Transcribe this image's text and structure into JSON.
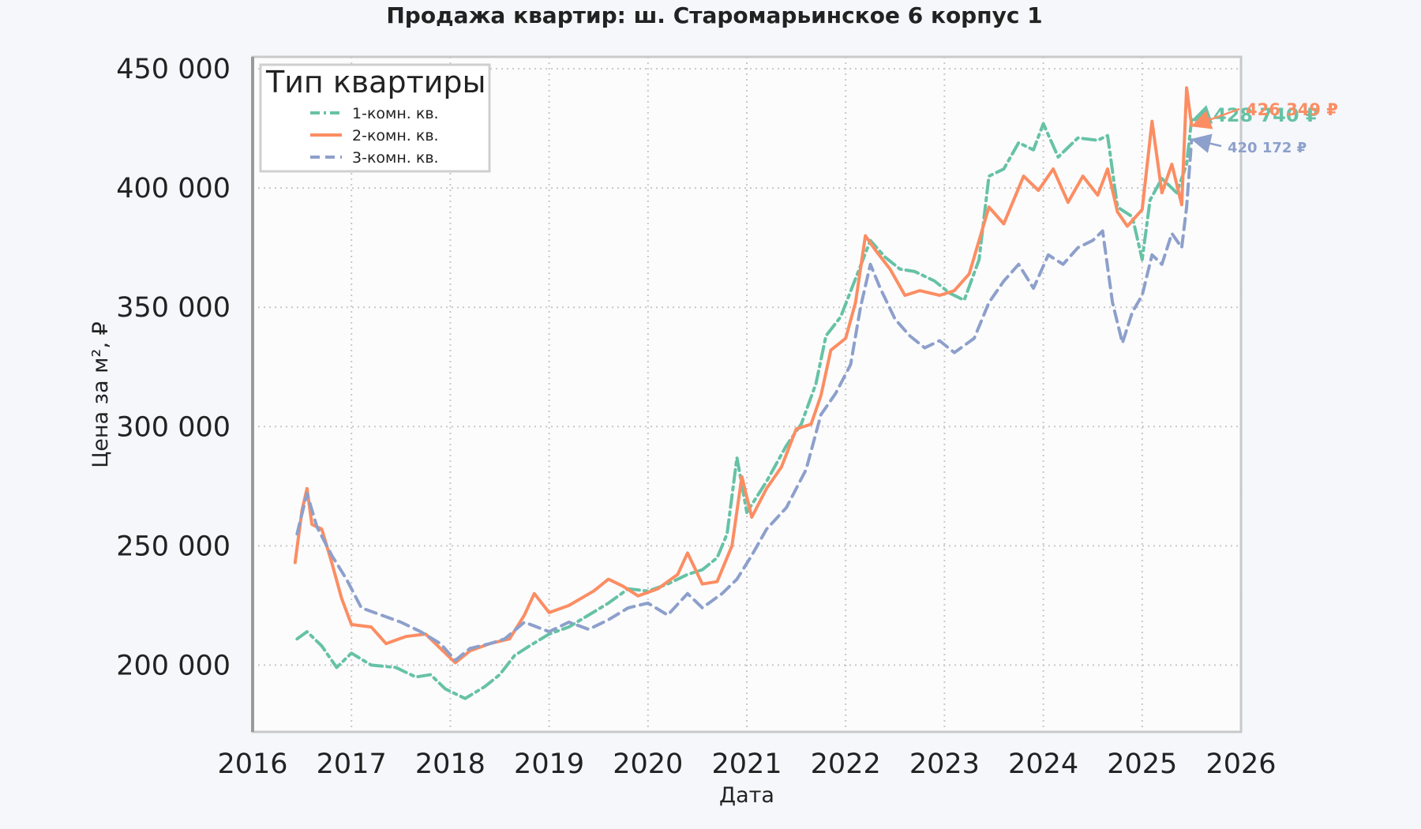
{
  "chart_data": {
    "type": "line",
    "title": "Продажа квартир: ш. Старомарьинское 6 корпус 1",
    "xlabel": "Дата",
    "ylabel": "Цена за м², ₽",
    "xlim": [
      2016.0,
      2026.0
    ],
    "ylim": [
      172000,
      455000
    ],
    "x_ticks": [
      "2016",
      "2017",
      "2018",
      "2019",
      "2020",
      "2021",
      "2022",
      "2023",
      "2024",
      "2025",
      "2026"
    ],
    "y_ticks": [
      "200 000",
      "250 000",
      "300 000",
      "350 000",
      "400 000",
      "450 000"
    ],
    "grid": true,
    "legend": {
      "title": "Тип квартиры",
      "position": "top-left"
    },
    "series": [
      {
        "name": "1-комн. кв.",
        "color": "#66c2a5",
        "dash": "dash-dot",
        "end_label": "428 740 ₽",
        "end_value": 428740,
        "points": [
          [
            2016.45,
            211000
          ],
          [
            2016.55,
            214000
          ],
          [
            2016.7,
            208000
          ],
          [
            2016.85,
            199000
          ],
          [
            2017.0,
            205000
          ],
          [
            2017.2,
            200000
          ],
          [
            2017.45,
            199000
          ],
          [
            2017.65,
            195000
          ],
          [
            2017.8,
            196000
          ],
          [
            2017.95,
            190000
          ],
          [
            2018.15,
            186000
          ],
          [
            2018.35,
            191000
          ],
          [
            2018.5,
            196000
          ],
          [
            2018.65,
            204000
          ],
          [
            2018.8,
            208000
          ],
          [
            2019.0,
            213000
          ],
          [
            2019.2,
            216000
          ],
          [
            2019.4,
            221000
          ],
          [
            2019.6,
            226000
          ],
          [
            2019.8,
            232000
          ],
          [
            2020.0,
            231000
          ],
          [
            2020.2,
            234000
          ],
          [
            2020.4,
            238000
          ],
          [
            2020.55,
            240000
          ],
          [
            2020.7,
            245000
          ],
          [
            2020.8,
            255000
          ],
          [
            2020.9,
            287000
          ],
          [
            2021.0,
            264000
          ],
          [
            2021.2,
            277000
          ],
          [
            2021.4,
            292000
          ],
          [
            2021.55,
            301000
          ],
          [
            2021.7,
            318000
          ],
          [
            2021.8,
            338000
          ],
          [
            2021.95,
            346000
          ],
          [
            2022.1,
            362000
          ],
          [
            2022.25,
            378000
          ],
          [
            2022.4,
            371000
          ],
          [
            2022.55,
            366000
          ],
          [
            2022.7,
            365000
          ],
          [
            2022.9,
            361000
          ],
          [
            2023.05,
            356000
          ],
          [
            2023.2,
            353000
          ],
          [
            2023.35,
            370000
          ],
          [
            2023.45,
            405000
          ],
          [
            2023.6,
            408000
          ],
          [
            2023.75,
            419000
          ],
          [
            2023.9,
            416000
          ],
          [
            2024.0,
            427000
          ],
          [
            2024.15,
            413000
          ],
          [
            2024.35,
            421000
          ],
          [
            2024.55,
            420000
          ],
          [
            2024.65,
            422000
          ],
          [
            2024.75,
            392000
          ],
          [
            2024.9,
            388000
          ],
          [
            2025.0,
            370000
          ],
          [
            2025.08,
            395000
          ],
          [
            2025.2,
            404000
          ],
          [
            2025.35,
            398000
          ],
          [
            2025.45,
            410000
          ],
          [
            2025.5,
            428740
          ]
        ]
      },
      {
        "name": "2-комн. кв.",
        "color": "#fc8d62",
        "dash": "solid",
        "end_label": "426 349 ₽",
        "end_value": 426349,
        "points": [
          [
            2016.43,
            243000
          ],
          [
            2016.5,
            265000
          ],
          [
            2016.55,
            274000
          ],
          [
            2016.6,
            259000
          ],
          [
            2016.7,
            257000
          ],
          [
            2016.8,
            243000
          ],
          [
            2016.9,
            228000
          ],
          [
            2017.0,
            217000
          ],
          [
            2017.2,
            216000
          ],
          [
            2017.35,
            209000
          ],
          [
            2017.55,
            212000
          ],
          [
            2017.75,
            213000
          ],
          [
            2017.9,
            207000
          ],
          [
            2018.05,
            201000
          ],
          [
            2018.2,
            206000
          ],
          [
            2018.4,
            209000
          ],
          [
            2018.6,
            211000
          ],
          [
            2018.75,
            221000
          ],
          [
            2018.85,
            230000
          ],
          [
            2019.0,
            222000
          ],
          [
            2019.2,
            225000
          ],
          [
            2019.45,
            231000
          ],
          [
            2019.6,
            236000
          ],
          [
            2019.75,
            233000
          ],
          [
            2019.9,
            229000
          ],
          [
            2020.1,
            232000
          ],
          [
            2020.3,
            238000
          ],
          [
            2020.4,
            247000
          ],
          [
            2020.55,
            234000
          ],
          [
            2020.7,
            235000
          ],
          [
            2020.85,
            250000
          ],
          [
            2020.95,
            279000
          ],
          [
            2021.05,
            262000
          ],
          [
            2021.2,
            274000
          ],
          [
            2021.35,
            283000
          ],
          [
            2021.5,
            299000
          ],
          [
            2021.65,
            301000
          ],
          [
            2021.75,
            313000
          ],
          [
            2021.85,
            332000
          ],
          [
            2022.0,
            337000
          ],
          [
            2022.1,
            352000
          ],
          [
            2022.2,
            380000
          ],
          [
            2022.3,
            374000
          ],
          [
            2022.45,
            366000
          ],
          [
            2022.6,
            355000
          ],
          [
            2022.75,
            357000
          ],
          [
            2022.95,
            355000
          ],
          [
            2023.1,
            357000
          ],
          [
            2023.25,
            364000
          ],
          [
            2023.35,
            378000
          ],
          [
            2023.45,
            392000
          ],
          [
            2023.6,
            385000
          ],
          [
            2023.8,
            405000
          ],
          [
            2023.95,
            399000
          ],
          [
            2024.1,
            408000
          ],
          [
            2024.25,
            394000
          ],
          [
            2024.4,
            405000
          ],
          [
            2024.55,
            397000
          ],
          [
            2024.65,
            408000
          ],
          [
            2024.75,
            390000
          ],
          [
            2024.85,
            384000
          ],
          [
            2025.0,
            391000
          ],
          [
            2025.1,
            428000
          ],
          [
            2025.2,
            398000
          ],
          [
            2025.3,
            410000
          ],
          [
            2025.4,
            393000
          ],
          [
            2025.45,
            442000
          ],
          [
            2025.5,
            426349
          ]
        ]
      },
      {
        "name": "3-комн. кв.",
        "color": "#8da0cb",
        "dash": "dashed",
        "end_label": "420 172 ₽",
        "end_value": 420172,
        "points": [
          [
            2016.45,
            255000
          ],
          [
            2016.55,
            272000
          ],
          [
            2016.65,
            258000
          ],
          [
            2016.8,
            246000
          ],
          [
            2016.95,
            236000
          ],
          [
            2017.1,
            224000
          ],
          [
            2017.3,
            221000
          ],
          [
            2017.5,
            218000
          ],
          [
            2017.7,
            214000
          ],
          [
            2017.9,
            209000
          ],
          [
            2018.05,
            202000
          ],
          [
            2018.2,
            207000
          ],
          [
            2018.4,
            209000
          ],
          [
            2018.55,
            211000
          ],
          [
            2018.75,
            218000
          ],
          [
            2019.0,
            214000
          ],
          [
            2019.2,
            218000
          ],
          [
            2019.4,
            215000
          ],
          [
            2019.6,
            219000
          ],
          [
            2019.8,
            224000
          ],
          [
            2020.0,
            226000
          ],
          [
            2020.2,
            221000
          ],
          [
            2020.4,
            230000
          ],
          [
            2020.55,
            224000
          ],
          [
            2020.75,
            230000
          ],
          [
            2020.9,
            236000
          ],
          [
            2021.05,
            246000
          ],
          [
            2021.2,
            257000
          ],
          [
            2021.4,
            266000
          ],
          [
            2021.6,
            282000
          ],
          [
            2021.75,
            305000
          ],
          [
            2021.9,
            314000
          ],
          [
            2022.05,
            326000
          ],
          [
            2022.15,
            350000
          ],
          [
            2022.25,
            368000
          ],
          [
            2022.35,
            358000
          ],
          [
            2022.5,
            345000
          ],
          [
            2022.65,
            338000
          ],
          [
            2022.8,
            333000
          ],
          [
            2022.95,
            336000
          ],
          [
            2023.1,
            331000
          ],
          [
            2023.3,
            337000
          ],
          [
            2023.45,
            352000
          ],
          [
            2023.6,
            361000
          ],
          [
            2023.75,
            368000
          ],
          [
            2023.9,
            358000
          ],
          [
            2024.05,
            372000
          ],
          [
            2024.2,
            368000
          ],
          [
            2024.35,
            375000
          ],
          [
            2024.5,
            378000
          ],
          [
            2024.6,
            382000
          ],
          [
            2024.7,
            352000
          ],
          [
            2024.8,
            335000
          ],
          [
            2024.9,
            348000
          ],
          [
            2025.0,
            355000
          ],
          [
            2025.1,
            372000
          ],
          [
            2025.2,
            368000
          ],
          [
            2025.3,
            381000
          ],
          [
            2025.4,
            375000
          ],
          [
            2025.45,
            392000
          ],
          [
            2025.5,
            420172
          ]
        ]
      }
    ]
  }
}
